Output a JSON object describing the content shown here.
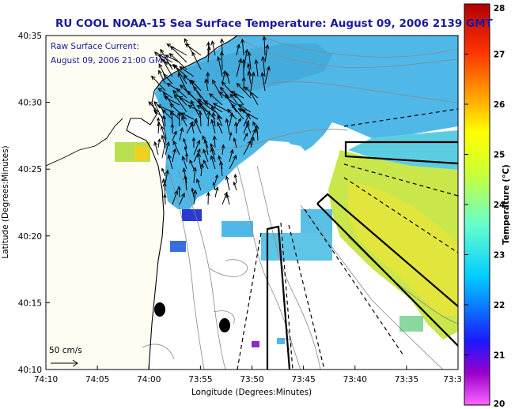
{
  "title": "RU COOL  NOAA-15  Sea Surface Temperature:  August 09, 2006 2139 GMT",
  "annotation": {
    "line1": "Raw Surface Current:",
    "line2": "August 09, 2006 21:00 GMT"
  },
  "scale_label": "50 cm/s",
  "axes": {
    "xlabel": "Longitude (Degrees:Minutes)",
    "ylabel": "Latitude (Degrees:Minutes)",
    "x_ticks": [
      "74:10",
      "74:05",
      "74:00",
      "73:55",
      "73:50",
      "73:45",
      "73:40",
      "73:35",
      "73:3"
    ],
    "y_ticks": [
      "40:35",
      "40:30",
      "40:25",
      "40:20",
      "40:15",
      "40:10"
    ]
  },
  "colorbar": {
    "label": "Temperature (°C)",
    "min": 20,
    "max": 28,
    "ticks": [
      "28",
      "27",
      "26",
      "25",
      "24",
      "23",
      "22",
      "21",
      "20"
    ],
    "stops": [
      "#ff66ff",
      "#9900cc",
      "#1a1aff",
      "#00ccff",
      "#66ffcc",
      "#ccff33",
      "#ffff00",
      "#ff9900",
      "#ff3300",
      "#b30000"
    ]
  },
  "colors": {
    "sst_cool": "#4fb8e8",
    "sst_warm": "#d8e84a",
    "vector": "#000000",
    "coastline": "#000000",
    "bathymetry": "#888888"
  }
}
